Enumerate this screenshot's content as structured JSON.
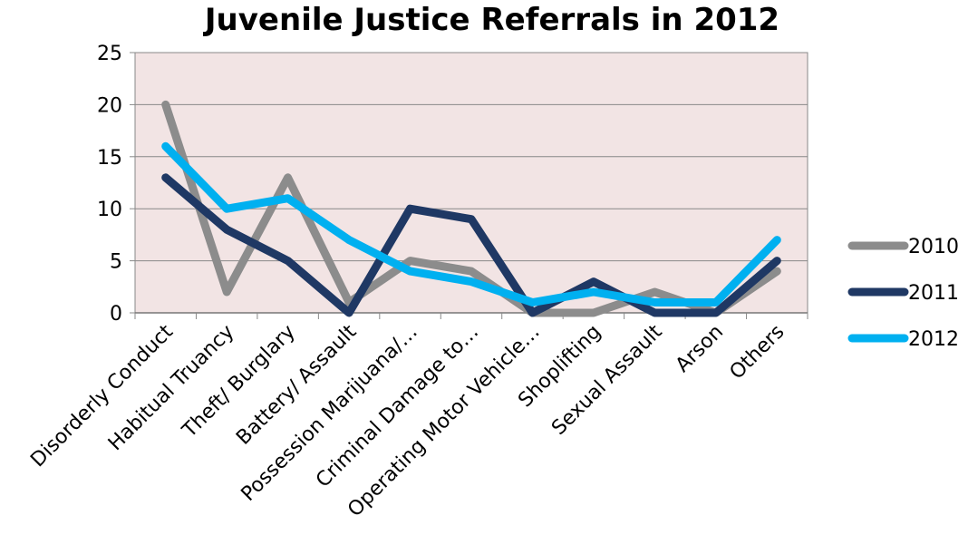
{
  "chart_data": {
    "type": "line",
    "title": "Juvenile Justice Referrals in 2012",
    "xlabel": "",
    "ylabel": "",
    "ylim": [
      0,
      25
    ],
    "yticks": [
      "0",
      "5",
      "10",
      "15",
      "20",
      "25"
    ],
    "grid": true,
    "legend_position": "right",
    "categories": [
      "Disorderly Conduct",
      "Habitual Truancy",
      "Theft/ Burglary",
      "Battery/ Assault",
      "Possession Marijuana/…",
      "Criminal Damage to…",
      "Operating Motor Vehicle…",
      "Shoplifting",
      "Sexual Assault",
      "Arson",
      "Others"
    ],
    "series": [
      {
        "name": "2010",
        "color": "#8c8c8c",
        "values": [
          20,
          2,
          13,
          1,
          5,
          4,
          0,
          0,
          2,
          0,
          4
        ]
      },
      {
        "name": "2011",
        "color": "#1f3864",
        "values": [
          13,
          8,
          5,
          0,
          10,
          9,
          0,
          3,
          0,
          0,
          5
        ]
      },
      {
        "name": "2012",
        "color": "#00b0f0",
        "values": [
          16,
          10,
          11,
          7,
          4,
          3,
          1,
          2,
          1,
          1,
          7
        ]
      }
    ]
  }
}
